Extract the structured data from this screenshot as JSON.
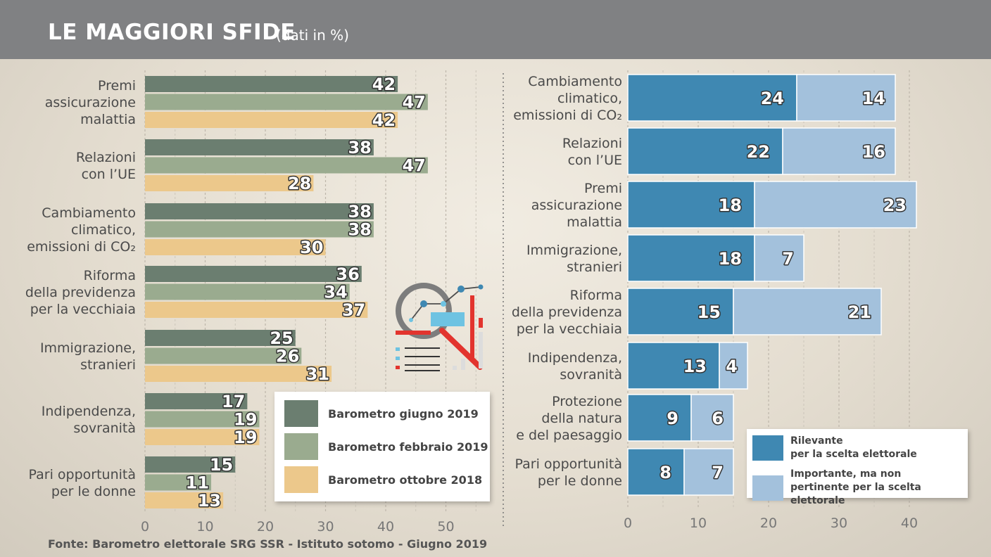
{
  "header": {
    "title": "LE MAGGIORI SFIDE",
    "subtitle": "(dati in %)"
  },
  "source": "Fonte: Barometro elettorale SRG SSR - Istituto sotomo - Giugno 2019",
  "colors": {
    "giugno_2019": "#6b7e70",
    "febbraio_2019": "#9aab8f",
    "ottobre_2018": "#ecc88b",
    "rilevante": "#3f88b2",
    "importante": "#a3c1dc",
    "header": "#808183"
  },
  "chart_data": [
    {
      "type": "bar",
      "orientation": "horizontal",
      "categories": [
        "Premi assicurazione malattia",
        "Relazioni con l'UE",
        "Cambiamento climatico, emissioni di CO₂",
        "Riforma della previdenza per la vecchiaia",
        "Immigrazione, stranieri",
        "Indipendenza, sovranità",
        "Pari opportunità per le donne"
      ],
      "category_lines": [
        [
          "Premi",
          "assicurazione",
          "malattia"
        ],
        [
          "Relazioni",
          "con l’UE"
        ],
        [
          "Cambiamento",
          "climatico,",
          "emissioni di CO₂"
        ],
        [
          "Riforma",
          "della previdenza",
          "per la vecchiaia"
        ],
        [
          "Immigrazione,",
          "stranieri"
        ],
        [
          "Indipendenza,",
          "sovranità"
        ],
        [
          "Pari opportunità",
          "per le donne"
        ]
      ],
      "series": [
        {
          "name": "Barometro giugno 2019",
          "values": [
            42,
            38,
            38,
            36,
            25,
            17,
            15
          ]
        },
        {
          "name": "Barometro febbraio 2019",
          "values": [
            47,
            47,
            38,
            34,
            26,
            19,
            11
          ]
        },
        {
          "name": "Barometro ottobre 2018",
          "values": [
            42,
            28,
            30,
            37,
            31,
            19,
            13
          ]
        }
      ],
      "xlim": [
        0,
        55
      ],
      "xticks": [
        0,
        10,
        20,
        30,
        40,
        50
      ],
      "grid": true,
      "legend_position": "bottom-right"
    },
    {
      "type": "bar",
      "orientation": "horizontal",
      "stacked": true,
      "categories": [
        "Cambiamento climatico, emissioni di CO₂",
        "Relazioni con l'UE",
        "Premi assicurazione malattia",
        "Immigrazione, stranieri",
        "Riforma della previdenza per la vecchiaia",
        "Indipendenza, sovranità",
        "Protezione della natura e del paesaggio",
        "Pari opportunità per le donne"
      ],
      "category_lines": [
        [
          "Cambiamento",
          "climatico,",
          "emissioni di CO₂"
        ],
        [
          "Relazioni",
          "con l’UE"
        ],
        [
          "Premi",
          "assicurazione",
          "malattia"
        ],
        [
          "Immigrazione,",
          "stranieri"
        ],
        [
          "Riforma",
          "della previdenza",
          "per la vecchiaia"
        ],
        [
          "Indipendenza,",
          "sovranità"
        ],
        [
          "Protezione",
          "della natura",
          "e del paesaggio"
        ],
        [
          "Pari opportunità",
          "per le donne"
        ]
      ],
      "series": [
        {
          "name": "Rilevante per la scelta elettorale",
          "values": [
            24,
            22,
            18,
            18,
            15,
            13,
            9,
            8
          ]
        },
        {
          "name": "Importante, ma non pertinente per la scelta elettorale",
          "values": [
            14,
            16,
            23,
            7,
            21,
            4,
            6,
            7
          ]
        }
      ],
      "xlim": [
        0,
        42
      ],
      "xticks": [
        0,
        10,
        20,
        30,
        40
      ],
      "grid": true,
      "legend_position": "bottom-right"
    }
  ],
  "legend_left": [
    {
      "label": "Barometro giugno 2019"
    },
    {
      "label": "Barometro febbraio 2019"
    },
    {
      "label": "Barometro ottobre 2018"
    }
  ],
  "legend_right": [
    {
      "line1": "Rilevante",
      "line2": "per la scelta elettorale"
    },
    {
      "line1": "Importante, ma non",
      "line2": "pertinente per la scelta elettorale"
    }
  ]
}
